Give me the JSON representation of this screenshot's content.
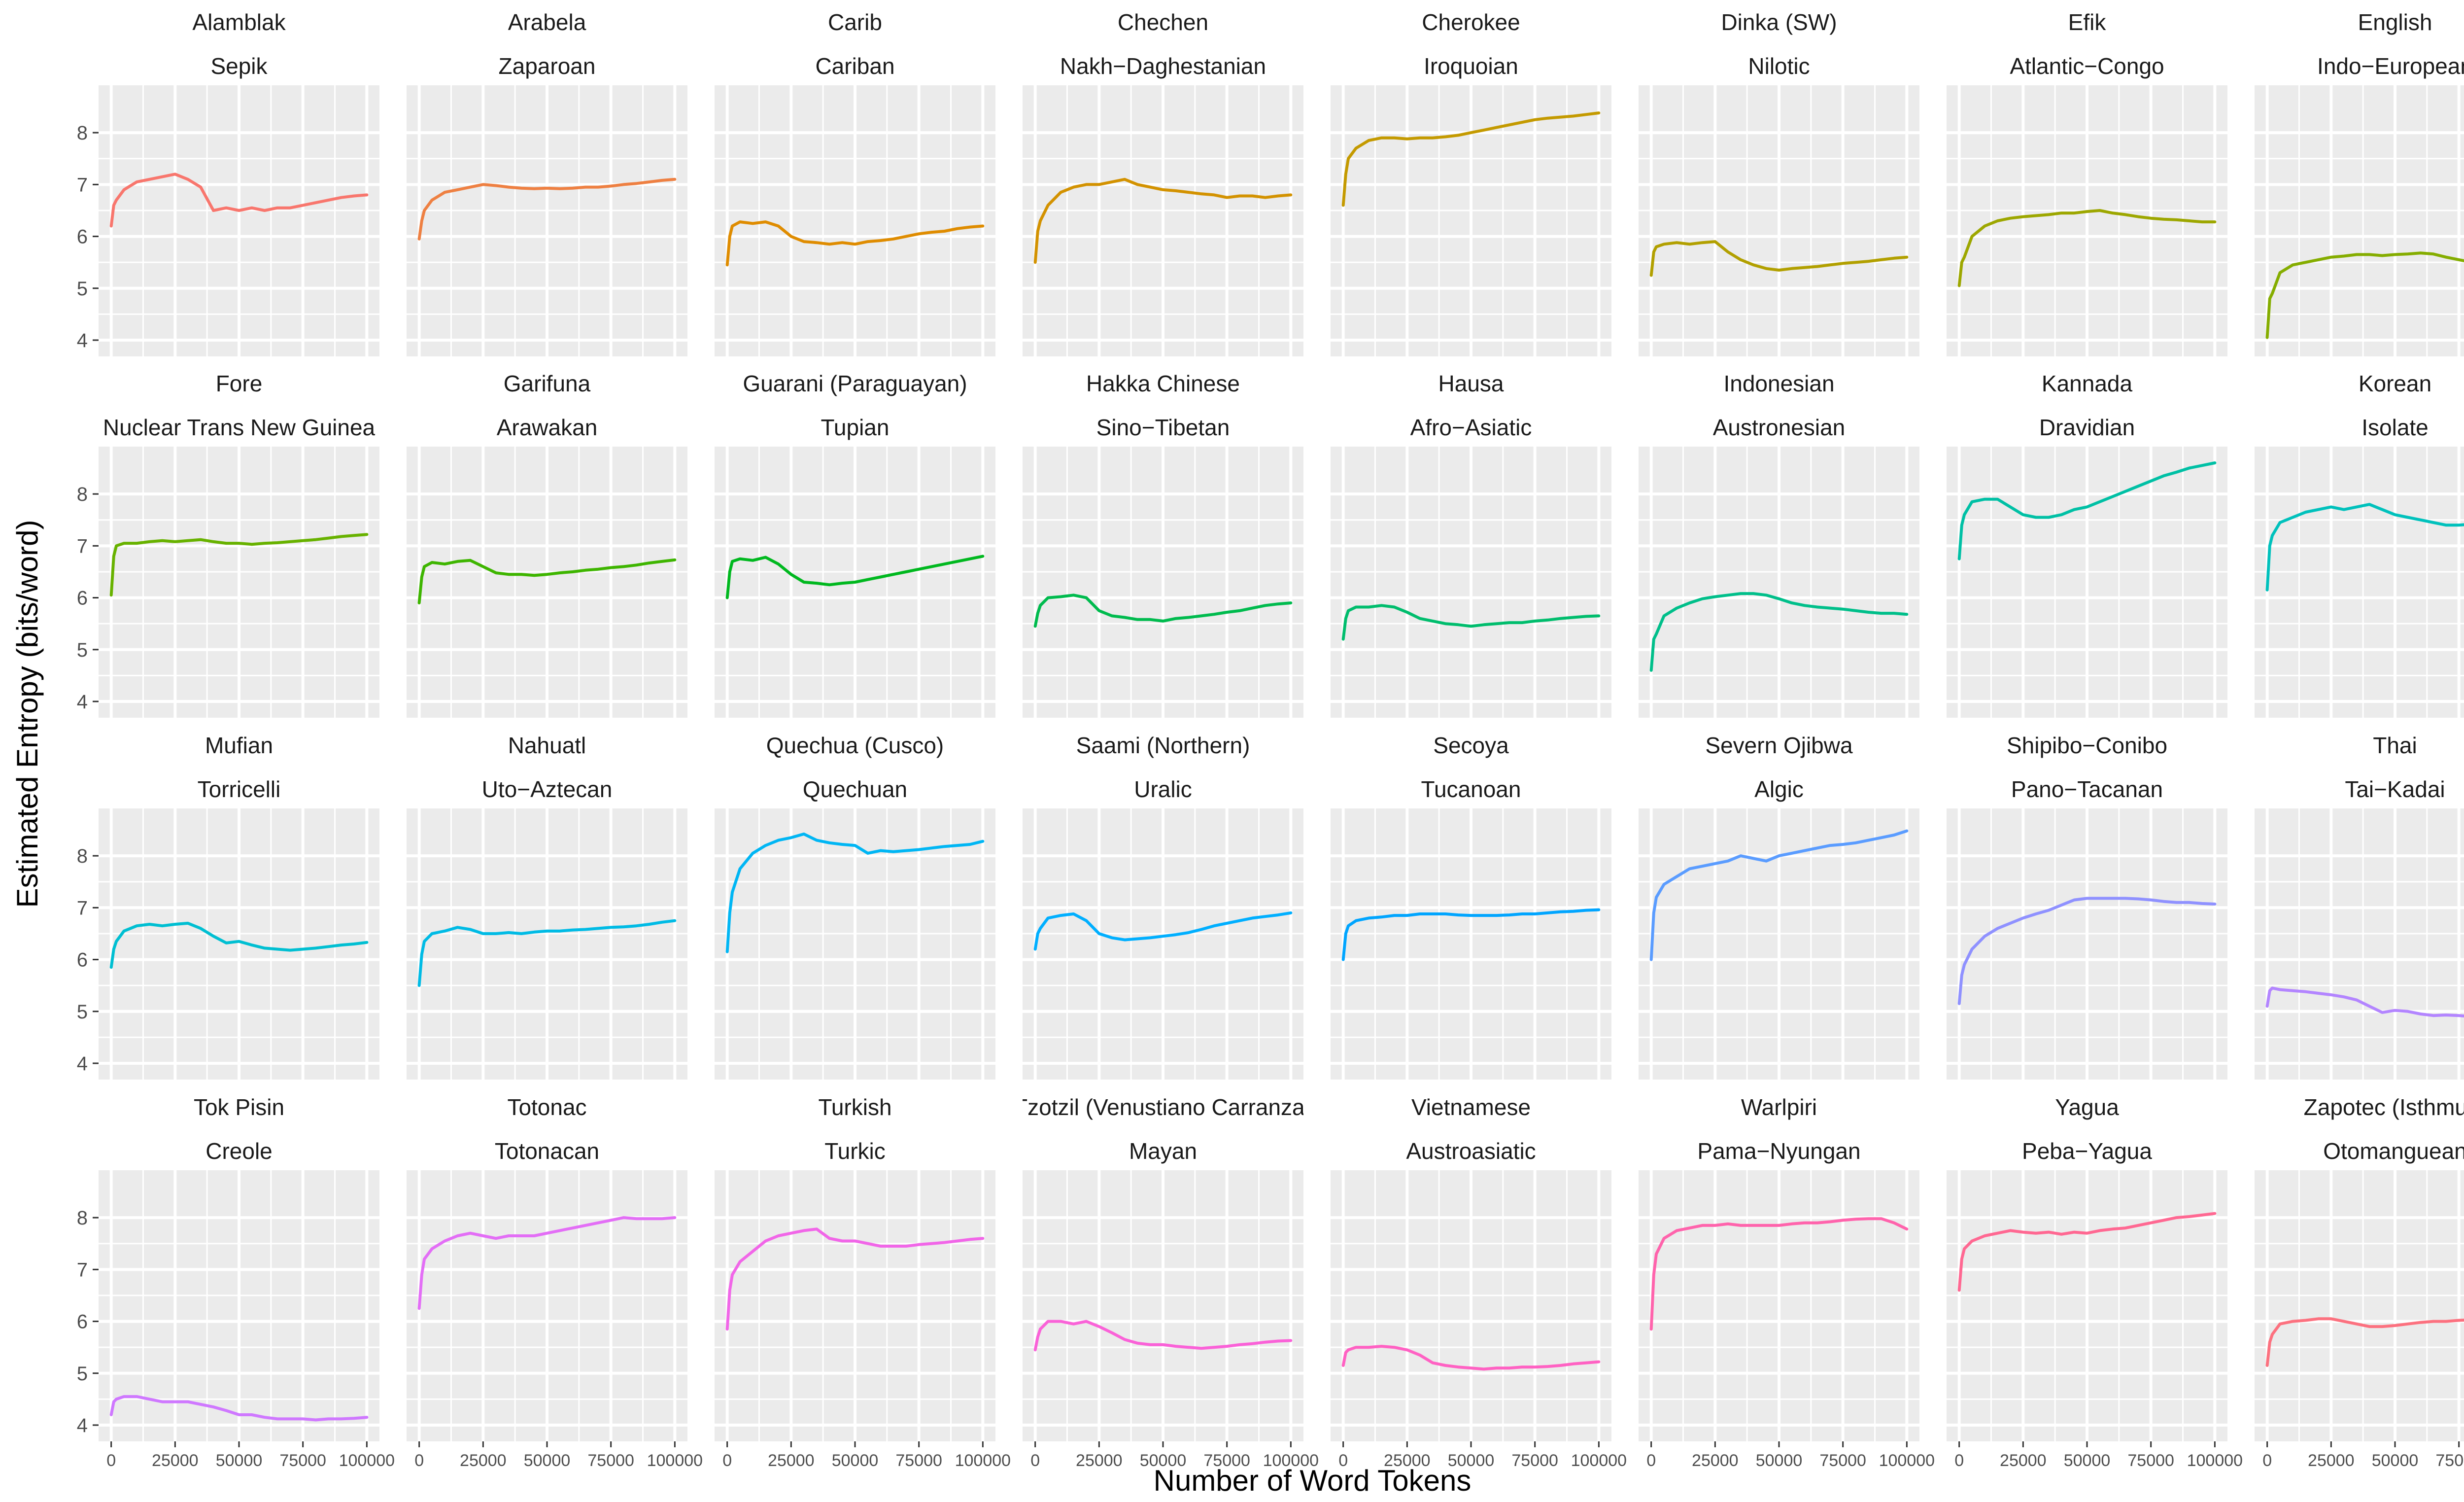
{
  "chart_data": {
    "type": "line",
    "facet_layout": "4 rows x 8 columns",
    "xlabel": "Number of Word Tokens",
    "ylabel": "Estimated Entropy (bits/word)",
    "xlim": [
      0,
      100000
    ],
    "ylim": [
      4,
      8.6
    ],
    "x_ticks": [
      0,
      25000,
      50000,
      75000,
      100000
    ],
    "x_tick_labels": [
      "0",
      "25000",
      "50000",
      "75000",
      "100000"
    ],
    "y_ticks": [
      4,
      5,
      6,
      7,
      8
    ],
    "y_tick_labels": [
      "4",
      "5",
      "6",
      "7",
      "8"
    ],
    "grid": true,
    "legend": "none",
    "x": [
      0,
      1000,
      2000,
      5000,
      10000,
      15000,
      20000,
      25000,
      30000,
      35000,
      40000,
      45000,
      50000,
      55000,
      60000,
      65000,
      70000,
      75000,
      80000,
      85000,
      90000,
      95000,
      100000
    ],
    "panels": [
      {
        "language": "Alamblak",
        "family": "Sepik",
        "color": "#F8766D",
        "values": [
          6.2,
          6.6,
          6.7,
          6.9,
          7.05,
          7.1,
          7.15,
          7.2,
          7.1,
          6.95,
          6.5,
          6.55,
          6.5,
          6.55,
          6.5,
          6.55,
          6.55,
          6.6,
          6.65,
          6.7,
          6.75,
          6.78,
          6.8
        ]
      },
      {
        "language": "Arabela",
        "family": "Zaparoan",
        "color": "#EE8042",
        "values": [
          5.95,
          6.3,
          6.5,
          6.7,
          6.85,
          6.9,
          6.95,
          7.0,
          6.98,
          6.95,
          6.93,
          6.92,
          6.93,
          6.92,
          6.93,
          6.95,
          6.95,
          6.97,
          7.0,
          7.02,
          7.05,
          7.08,
          7.1
        ]
      },
      {
        "language": "Carib",
        "family": "Cariban",
        "color": "#DF8C00",
        "values": [
          5.45,
          6.0,
          6.2,
          6.28,
          6.25,
          6.28,
          6.2,
          6.0,
          5.9,
          5.88,
          5.85,
          5.88,
          5.85,
          5.9,
          5.92,
          5.95,
          6.0,
          6.05,
          6.08,
          6.1,
          6.15,
          6.18,
          6.2
        ]
      },
      {
        "language": "Chechen",
        "family": "Nakh−Daghestanian",
        "color": "#D39200",
        "values": [
          5.5,
          6.1,
          6.3,
          6.6,
          6.85,
          6.95,
          7.0,
          7.0,
          7.05,
          7.1,
          7.0,
          6.95,
          6.9,
          6.88,
          6.85,
          6.82,
          6.8,
          6.75,
          6.78,
          6.78,
          6.75,
          6.78,
          6.8
        ]
      },
      {
        "language": "Cherokee",
        "family": "Iroquoian",
        "color": "#C49A00",
        "values": [
          6.6,
          7.2,
          7.5,
          7.7,
          7.85,
          7.9,
          7.9,
          7.88,
          7.9,
          7.9,
          7.92,
          7.95,
          8.0,
          8.05,
          8.1,
          8.15,
          8.2,
          8.25,
          8.28,
          8.3,
          8.32,
          8.35,
          8.38
        ]
      },
      {
        "language": "Dinka (SW)",
        "family": "Nilotic",
        "color": "#B2A000",
        "values": [
          5.25,
          5.7,
          5.8,
          5.85,
          5.88,
          5.85,
          5.88,
          5.9,
          5.7,
          5.55,
          5.45,
          5.38,
          5.35,
          5.38,
          5.4,
          5.42,
          5.45,
          5.48,
          5.5,
          5.52,
          5.55,
          5.58,
          5.6
        ]
      },
      {
        "language": "Efik",
        "family": "Atlantic−Congo",
        "color": "#9DA700",
        "values": [
          5.05,
          5.5,
          5.6,
          6.0,
          6.2,
          6.3,
          6.35,
          6.38,
          6.4,
          6.42,
          6.45,
          6.45,
          6.48,
          6.5,
          6.45,
          6.42,
          6.38,
          6.35,
          6.33,
          6.32,
          6.3,
          6.28,
          6.28
        ]
      },
      {
        "language": "English",
        "family": "Indo−European",
        "color": "#85AD00",
        "values": [
          4.05,
          4.8,
          4.9,
          5.3,
          5.45,
          5.5,
          5.55,
          5.6,
          5.62,
          5.65,
          5.65,
          5.63,
          5.65,
          5.66,
          5.68,
          5.66,
          5.6,
          5.55,
          5.5,
          5.48,
          5.45,
          5.43,
          5.42
        ]
      },
      {
        "language": "Fore",
        "family": "Nuclear Trans New Guinea",
        "color": "#68B200",
        "values": [
          6.05,
          6.8,
          7.0,
          7.05,
          7.05,
          7.08,
          7.1,
          7.08,
          7.1,
          7.12,
          7.08,
          7.05,
          7.05,
          7.03,
          7.05,
          7.06,
          7.08,
          7.1,
          7.12,
          7.15,
          7.18,
          7.2,
          7.22
        ]
      },
      {
        "language": "Garifuna",
        "family": "Arawakan",
        "color": "#3EB500",
        "values": [
          5.9,
          6.4,
          6.6,
          6.68,
          6.65,
          6.7,
          6.72,
          6.6,
          6.48,
          6.45,
          6.45,
          6.43,
          6.45,
          6.48,
          6.5,
          6.53,
          6.55,
          6.58,
          6.6,
          6.63,
          6.67,
          6.7,
          6.73
        ]
      },
      {
        "language": "Guarani (Paraguayan)",
        "family": "Tupian",
        "color": "#00B81F",
        "values": [
          6.0,
          6.5,
          6.7,
          6.75,
          6.72,
          6.78,
          6.65,
          6.45,
          6.3,
          6.28,
          6.25,
          6.28,
          6.3,
          6.35,
          6.4,
          6.45,
          6.5,
          6.55,
          6.6,
          6.65,
          6.7,
          6.75,
          6.8
        ]
      },
      {
        "language": "Hakka Chinese",
        "family": "Sino−Tibetan",
        "color": "#00BB4E",
        "values": [
          5.45,
          5.7,
          5.85,
          6.0,
          6.02,
          6.05,
          6.0,
          5.75,
          5.65,
          5.62,
          5.58,
          5.58,
          5.55,
          5.6,
          5.62,
          5.65,
          5.68,
          5.72,
          5.75,
          5.8,
          5.85,
          5.88,
          5.9
        ]
      },
      {
        "language": "Hausa",
        "family": "Afro−Asiatic",
        "color": "#00BD6D",
        "values": [
          5.2,
          5.6,
          5.75,
          5.82,
          5.82,
          5.85,
          5.82,
          5.72,
          5.6,
          5.55,
          5.5,
          5.48,
          5.45,
          5.48,
          5.5,
          5.52,
          5.52,
          5.55,
          5.57,
          5.6,
          5.62,
          5.64,
          5.65
        ]
      },
      {
        "language": "Indonesian",
        "family": "Austronesian",
        "color": "#00BF8A",
        "values": [
          4.6,
          5.2,
          5.3,
          5.65,
          5.8,
          5.9,
          5.98,
          6.02,
          6.05,
          6.08,
          6.08,
          6.05,
          5.98,
          5.9,
          5.85,
          5.82,
          5.8,
          5.78,
          5.75,
          5.72,
          5.7,
          5.7,
          5.68
        ]
      },
      {
        "language": "Kannada",
        "family": "Dravidian",
        "color": "#00C0A5",
        "values": [
          6.75,
          7.4,
          7.6,
          7.85,
          7.9,
          7.9,
          7.75,
          7.6,
          7.55,
          7.55,
          7.6,
          7.7,
          7.75,
          7.85,
          7.95,
          8.05,
          8.15,
          8.25,
          8.35,
          8.42,
          8.5,
          8.55,
          8.6
        ]
      },
      {
        "language": "Korean",
        "family": "Isolate",
        "color": "#00C1BC",
        "values": [
          6.15,
          7.0,
          7.2,
          7.45,
          7.55,
          7.65,
          7.7,
          7.75,
          7.7,
          7.75,
          7.8,
          7.7,
          7.6,
          7.55,
          7.5,
          7.45,
          7.4,
          7.4,
          7.42,
          7.4,
          7.42,
          7.42,
          7.43
        ]
      },
      {
        "language": "Mufian",
        "family": "Torricelli",
        "color": "#00BFD2",
        "values": [
          5.85,
          6.2,
          6.35,
          6.55,
          6.65,
          6.68,
          6.65,
          6.68,
          6.7,
          6.6,
          6.45,
          6.32,
          6.35,
          6.28,
          6.22,
          6.2,
          6.18,
          6.2,
          6.22,
          6.25,
          6.28,
          6.3,
          6.33
        ]
      },
      {
        "language": "Nahuatl",
        "family": "Uto−Aztecan",
        "color": "#00BBE5",
        "values": [
          5.5,
          6.1,
          6.35,
          6.5,
          6.55,
          6.62,
          6.58,
          6.5,
          6.5,
          6.52,
          6.5,
          6.53,
          6.55,
          6.55,
          6.57,
          6.58,
          6.6,
          6.62,
          6.63,
          6.65,
          6.68,
          6.72,
          6.75
        ]
      },
      {
        "language": "Quechua (Cusco)",
        "family": "Quechuan",
        "color": "#00B6F4",
        "values": [
          6.15,
          6.9,
          7.3,
          7.75,
          8.05,
          8.2,
          8.3,
          8.35,
          8.42,
          8.3,
          8.25,
          8.22,
          8.2,
          8.05,
          8.1,
          8.08,
          8.1,
          8.12,
          8.15,
          8.18,
          8.2,
          8.22,
          8.28
        ]
      },
      {
        "language": "Saami (Northern)",
        "family": "Uralic",
        "color": "#00AFFF",
        "values": [
          6.2,
          6.5,
          6.6,
          6.8,
          6.85,
          6.88,
          6.75,
          6.5,
          6.42,
          6.38,
          6.4,
          6.42,
          6.45,
          6.48,
          6.52,
          6.58,
          6.65,
          6.7,
          6.75,
          6.8,
          6.83,
          6.86,
          6.9
        ]
      },
      {
        "language": "Secoya",
        "family": "Tucanoan",
        "color": "#00A5FF",
        "values": [
          6.0,
          6.5,
          6.65,
          6.75,
          6.8,
          6.82,
          6.85,
          6.85,
          6.88,
          6.88,
          6.88,
          6.86,
          6.85,
          6.85,
          6.85,
          6.86,
          6.88,
          6.88,
          6.9,
          6.92,
          6.93,
          6.95,
          6.96
        ]
      },
      {
        "language": "Severn Ojibwa",
        "family": "Algic",
        "color": "#5A9CFF",
        "values": [
          6.0,
          6.9,
          7.2,
          7.45,
          7.6,
          7.75,
          7.8,
          7.85,
          7.9,
          8.0,
          7.95,
          7.9,
          8.0,
          8.05,
          8.1,
          8.15,
          8.2,
          8.22,
          8.25,
          8.3,
          8.35,
          8.4,
          8.48
        ]
      },
      {
        "language": "Shipibo−Conibo",
        "family": "Pano−Tacanan",
        "color": "#8F91FF",
        "values": [
          5.15,
          5.7,
          5.9,
          6.2,
          6.45,
          6.6,
          6.7,
          6.8,
          6.88,
          6.95,
          7.05,
          7.15,
          7.18,
          7.18,
          7.18,
          7.18,
          7.17,
          7.15,
          7.12,
          7.1,
          7.1,
          7.08,
          7.07
        ]
      },
      {
        "language": "Thai",
        "family": "Tai−Kadai",
        "color": "#B385FF",
        "values": [
          5.1,
          5.4,
          5.45,
          5.42,
          5.4,
          5.38,
          5.35,
          5.32,
          5.28,
          5.22,
          5.1,
          4.98,
          5.02,
          5.0,
          4.95,
          4.92,
          4.93,
          4.92,
          4.9,
          4.92,
          4.92,
          4.93,
          4.92
        ]
      },
      {
        "language": "Tok Pisin",
        "family": "Creole",
        "color": "#CF78FF",
        "values": [
          4.2,
          4.45,
          4.5,
          4.55,
          4.55,
          4.5,
          4.45,
          4.45,
          4.45,
          4.4,
          4.35,
          4.28,
          4.2,
          4.2,
          4.15,
          4.12,
          4.12,
          4.12,
          4.1,
          4.12,
          4.12,
          4.13,
          4.15
        ]
      },
      {
        "language": "Totonac",
        "family": "Totonacan",
        "color": "#E36EF6",
        "values": [
          6.25,
          6.9,
          7.2,
          7.4,
          7.55,
          7.65,
          7.7,
          7.65,
          7.6,
          7.65,
          7.65,
          7.65,
          7.7,
          7.75,
          7.8,
          7.85,
          7.9,
          7.95,
          8.0,
          7.98,
          7.98,
          7.98,
          8.0
        ]
      },
      {
        "language": "Turkish",
        "family": "Turkic",
        "color": "#F166E8",
        "values": [
          5.85,
          6.6,
          6.9,
          7.15,
          7.35,
          7.55,
          7.65,
          7.7,
          7.75,
          7.78,
          7.6,
          7.55,
          7.55,
          7.5,
          7.45,
          7.45,
          7.45,
          7.48,
          7.5,
          7.52,
          7.55,
          7.58,
          7.6
        ]
      },
      {
        "language": "Tzotzil (Venustiano Carranza)",
        "family": "Mayan",
        "color": "#FA62D8",
        "values": [
          5.45,
          5.7,
          5.85,
          6.0,
          6.0,
          5.95,
          6.0,
          5.9,
          5.78,
          5.65,
          5.58,
          5.55,
          5.55,
          5.52,
          5.5,
          5.48,
          5.5,
          5.52,
          5.55,
          5.57,
          5.6,
          5.62,
          5.63
        ]
      },
      {
        "language": "Vietnamese",
        "family": "Austroasiatic",
        "color": "#FF61C3",
        "values": [
          5.15,
          5.4,
          5.45,
          5.5,
          5.5,
          5.52,
          5.5,
          5.45,
          5.35,
          5.2,
          5.15,
          5.12,
          5.1,
          5.08,
          5.1,
          5.1,
          5.12,
          5.12,
          5.13,
          5.15,
          5.18,
          5.2,
          5.22
        ]
      },
      {
        "language": "Warlpiri",
        "family": "Pama−Nyungan",
        "color": "#FF63AC",
        "values": [
          5.85,
          6.9,
          7.3,
          7.6,
          7.75,
          7.8,
          7.85,
          7.85,
          7.88,
          7.85,
          7.85,
          7.85,
          7.85,
          7.88,
          7.9,
          7.9,
          7.92,
          7.95,
          7.97,
          7.98,
          7.98,
          7.9,
          7.78
        ]
      },
      {
        "language": "Yagua",
        "family": "Peba−Yagua",
        "color": "#FF6892",
        "values": [
          6.6,
          7.2,
          7.4,
          7.55,
          7.65,
          7.7,
          7.75,
          7.72,
          7.7,
          7.72,
          7.68,
          7.72,
          7.7,
          7.75,
          7.78,
          7.8,
          7.85,
          7.9,
          7.95,
          8.0,
          8.02,
          8.05,
          8.08
        ]
      },
      {
        "language": "Zapotec (Isthmus)",
        "family": "Otomanguean",
        "color": "#FC717F",
        "values": [
          5.15,
          5.6,
          5.75,
          5.95,
          6.0,
          6.02,
          6.05,
          6.05,
          6.0,
          5.95,
          5.9,
          5.9,
          5.92,
          5.95,
          5.98,
          6.0,
          6.0,
          6.02,
          6.03,
          6.05,
          6.07,
          6.08,
          6.1
        ]
      }
    ]
  }
}
